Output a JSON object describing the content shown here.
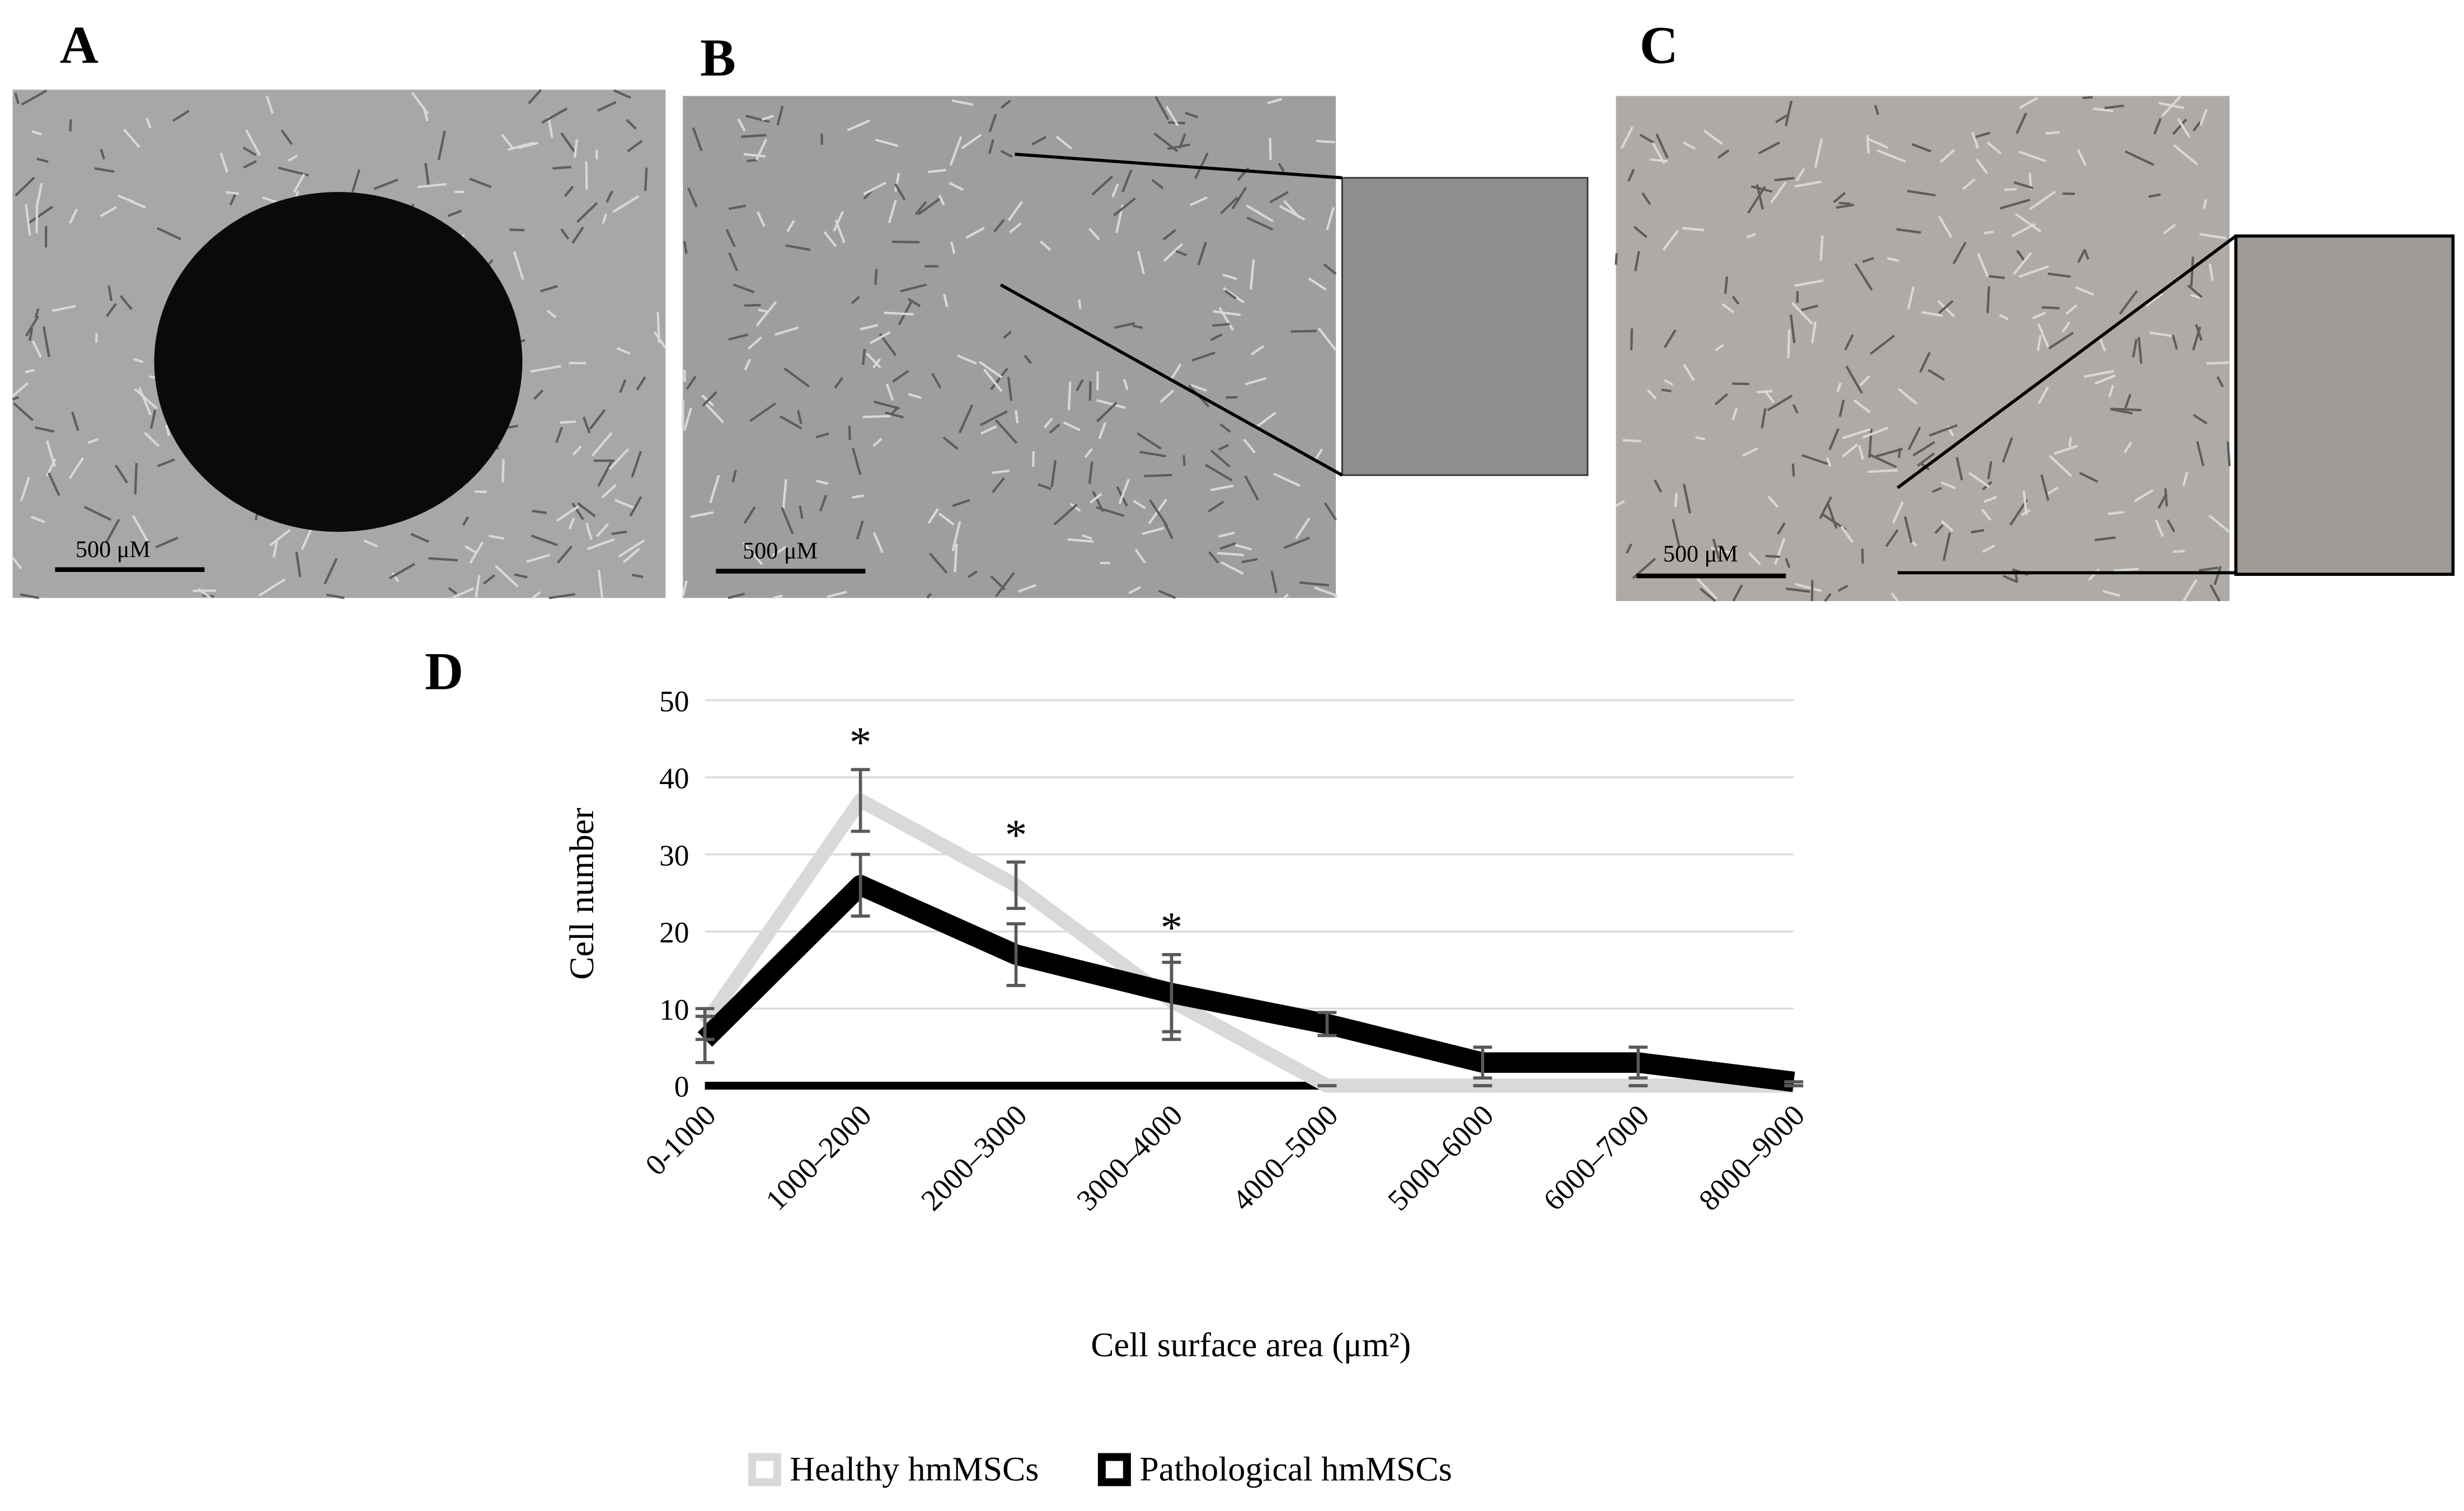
{
  "figure": {
    "panels": [
      {
        "label": "A",
        "scale_bar": "500 μM"
      },
      {
        "label": "B",
        "scale_bar": "500 μM"
      },
      {
        "label": "C",
        "scale_bar": "500 μM"
      }
    ],
    "chart_label": "D"
  },
  "chart_data": {
    "type": "line",
    "ylabel": "Cell number",
    "xlabel": "Cell surface area (μm²)",
    "categories": [
      "0-1000",
      "1000–2000",
      "2000–3000",
      "3000–4000",
      "4000–5000",
      "5000–6000",
      "6000–7000",
      "8000–9000"
    ],
    "series": [
      {
        "name": "Healthy hmMSCs",
        "color": "#d9d9d9",
        "values": [
          8,
          37,
          26,
          11,
          0,
          0,
          0,
          0
        ],
        "errors": [
          2,
          4,
          3,
          5,
          0,
          0,
          0,
          0
        ]
      },
      {
        "name": "Pathological hmMSCs",
        "color": "#000000",
        "values": [
          6,
          26,
          17,
          12,
          8,
          3,
          3,
          0.5
        ],
        "errors": [
          3,
          4,
          4,
          5,
          1.5,
          2,
          2,
          0
        ]
      }
    ],
    "ylim": [
      0,
      50
    ],
    "yticks": [
      0,
      10,
      20,
      30,
      40,
      50
    ],
    "grid": true,
    "legend": "bottom",
    "annotations": [
      {
        "text": "*",
        "category": "1000–2000"
      },
      {
        "text": "*",
        "category": "2000–3000"
      },
      {
        "text": "*",
        "category": "3000–4000"
      }
    ]
  }
}
